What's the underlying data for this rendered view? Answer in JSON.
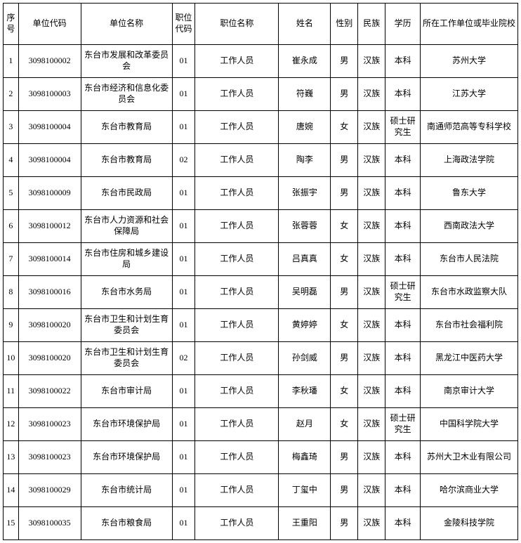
{
  "columns": [
    "序号",
    "单位代码",
    "单位名称",
    "职位代码",
    "职位名称",
    "姓名",
    "性别",
    "民族",
    "学历",
    "所在工作单位或毕业院校"
  ],
  "rows": [
    [
      "1",
      "3098100002",
      "东台市发展和改革委员会",
      "01",
      "工作人员",
      "崔永成",
      "男",
      "汉族",
      "本科",
      "苏州大学"
    ],
    [
      "2",
      "3098100003",
      "东台市经济和信息化委员会",
      "01",
      "工作人员",
      "符巍",
      "男",
      "汉族",
      "本科",
      "江苏大学"
    ],
    [
      "3",
      "3098100004",
      "东台市教育局",
      "01",
      "工作人员",
      "唐婉",
      "女",
      "汉族",
      "硕士研究生",
      "南通师范高等专科学校"
    ],
    [
      "4",
      "3098100004",
      "东台市教育局",
      "02",
      "工作人员",
      "陶李",
      "男",
      "汉族",
      "本科",
      "上海政法学院"
    ],
    [
      "5",
      "3098100009",
      "东台市民政局",
      "01",
      "工作人员",
      "张振宇",
      "男",
      "汉族",
      "本科",
      "鲁东大学"
    ],
    [
      "6",
      "3098100012",
      "东台市人力资源和社会保障局",
      "01",
      "工作人员",
      "张蓉蓉",
      "女",
      "汉族",
      "本科",
      "西南政法大学"
    ],
    [
      "7",
      "3098100014",
      "东台市住房和城乡建设局",
      "01",
      "工作人员",
      "吕真真",
      "女",
      "汉族",
      "本科",
      "东台市人民法院"
    ],
    [
      "8",
      "3098100016",
      "东台市水务局",
      "01",
      "工作人员",
      "吴明磊",
      "男",
      "汉族",
      "硕士研究生",
      "东台市水政监察大队"
    ],
    [
      "9",
      "3098100020",
      "东台市卫生和计划生育委员会",
      "01",
      "工作人员",
      "黄婷婷",
      "女",
      "汉族",
      "本科",
      "东台市社会福利院"
    ],
    [
      "10",
      "3098100020",
      "东台市卫生和计划生育委员会",
      "02",
      "工作人员",
      "孙剑威",
      "男",
      "汉族",
      "本科",
      "黑龙江中医药大学"
    ],
    [
      "11",
      "3098100022",
      "东台市审计局",
      "01",
      "工作人员",
      "李秋璠",
      "女",
      "汉族",
      "本科",
      "南京审计大学"
    ],
    [
      "12",
      "3098100023",
      "东台市环境保护局",
      "01",
      "工作人员",
      "赵月",
      "女",
      "汉族",
      "硕士研究生",
      "中国科学院大学"
    ],
    [
      "13",
      "3098100023",
      "东台市环境保护局",
      "01",
      "工作人员",
      "梅鑫琦",
      "男",
      "汉族",
      "本科",
      "苏州大卫木业有限公司"
    ],
    [
      "14",
      "3098100029",
      "东台市统计局",
      "01",
      "工作人员",
      "丁玺中",
      "男",
      "汉族",
      "本科",
      "哈尔滨商业大学"
    ],
    [
      "15",
      "3098100035",
      "东台市粮食局",
      "01",
      "工作人员",
      "王重阳",
      "男",
      "汉族",
      "本科",
      "金陵科技学院"
    ]
  ]
}
